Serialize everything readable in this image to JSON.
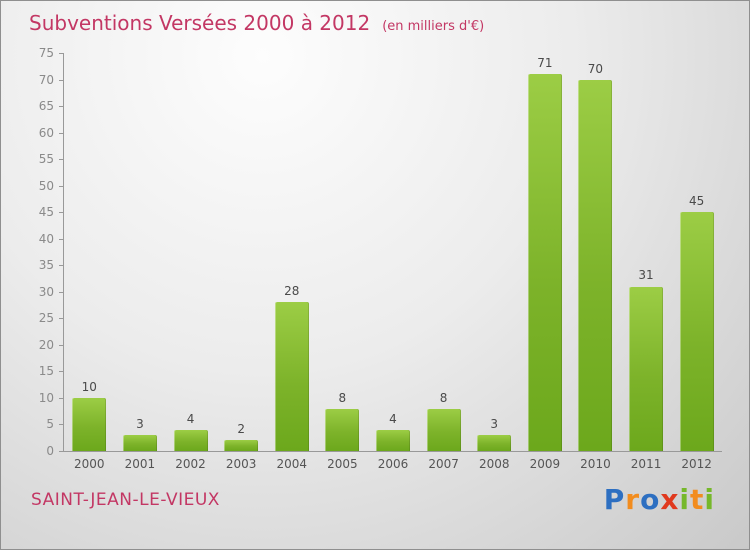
{
  "header": {
    "title": "Subventions Versées 2000 à 2012",
    "subtitle": "(en milliers d'€)"
  },
  "chart_data": {
    "type": "bar",
    "title": "Subventions Versées 2000 à 2012",
    "categories": [
      "2000",
      "2001",
      "2002",
      "2003",
      "2004",
      "2005",
      "2006",
      "2007",
      "2008",
      "2009",
      "2010",
      "2011",
      "2012"
    ],
    "values": [
      10,
      3,
      4,
      2,
      28,
      8,
      4,
      8,
      3,
      71,
      70,
      31,
      45
    ],
    "xlabel": "",
    "ylabel": "",
    "ylim": [
      0,
      75
    ],
    "ytick_step": 5,
    "yticks": [
      0,
      5,
      10,
      15,
      20,
      25,
      30,
      35,
      40,
      45,
      50,
      55,
      60,
      65,
      70,
      75
    ],
    "grid": false,
    "legend": "none",
    "bar_color_top": "#9ccd45",
    "bar_color_bottom": "#6ca81c"
  },
  "footer": {
    "place": "SAINT-JEAN-LE-VIEUX"
  },
  "logo": {
    "text": "Proxiti",
    "letters": [
      {
        "ch": "P",
        "color": "#2d6fc1"
      },
      {
        "ch": "r",
        "color": "#f28c1e"
      },
      {
        "ch": "o",
        "color": "#2d6fc1"
      },
      {
        "ch": "x",
        "color": "#e0391e"
      },
      {
        "ch": "i",
        "color": "#76b82a"
      },
      {
        "ch": "t",
        "color": "#f28c1e"
      },
      {
        "ch": "i",
        "color": "#76b82a"
      }
    ]
  },
  "colors": {
    "accent_pink": "#c33764",
    "axis": "#999999",
    "ytick_text": "#8a8a8a",
    "value_text": "#4a4a4a",
    "xtick_text": "#555555"
  }
}
